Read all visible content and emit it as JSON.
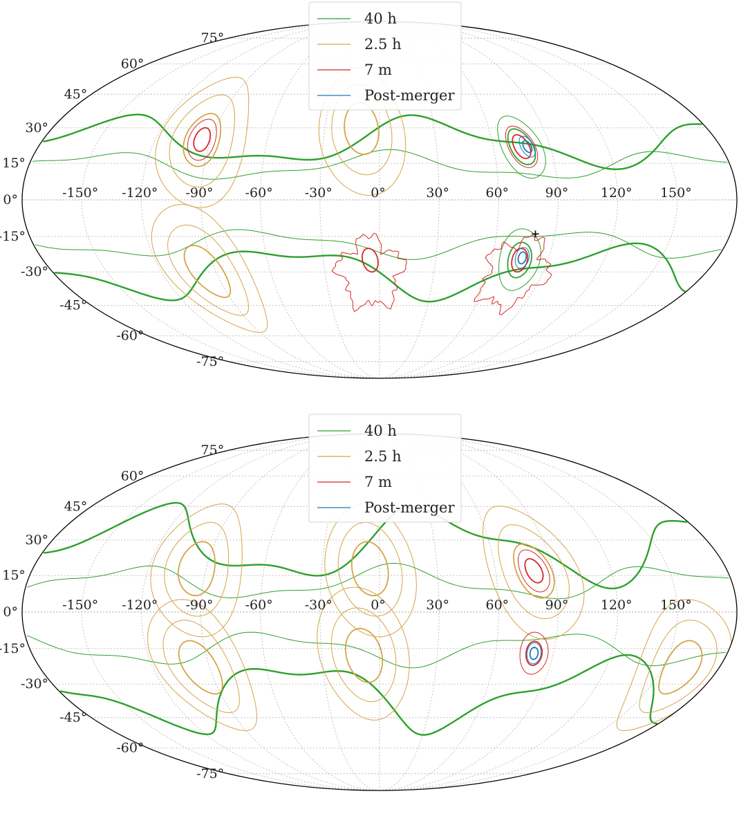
{
  "chart_data": [
    {
      "type": "contour",
      "projection": "mollweide",
      "grid": true,
      "legend_location": "upper-center",
      "longitude_ticks": [
        "-150°",
        "-120°",
        "-90°",
        "-60°",
        "-30°",
        "0°",
        "30°",
        "60°",
        "90°",
        "120°",
        "150°"
      ],
      "latitude_ticks_left": [
        "75°",
        "60°",
        "45°",
        "30°",
        "15°",
        "0°",
        "-15°",
        "-30°",
        "-45°",
        "-60°",
        "-75°"
      ],
      "series": [
        {
          "name": "40 h",
          "color": "#2ca02c"
        },
        {
          "name": "2.5 h",
          "color": "#d4a447"
        },
        {
          "name": "7 m",
          "color": "#d62728"
        },
        {
          "name": "Post-merger",
          "color": "#1f77b4"
        }
      ],
      "localization_regions": [
        {
          "series": "40 h",
          "lon": 75,
          "lat": 22
        },
        {
          "series": "40 h",
          "lon": 75,
          "lat": -25
        },
        {
          "series": "2.5 h",
          "lon": -95,
          "lat": 25
        },
        {
          "series": "2.5 h",
          "lon": -10,
          "lat": 30
        },
        {
          "series": "2.5 h",
          "lon": -95,
          "lat": -30
        },
        {
          "series": "7 m",
          "lon": -95,
          "lat": 25
        },
        {
          "series": "7 m",
          "lon": -5,
          "lat": -25
        },
        {
          "series": "7 m",
          "lon": 75,
          "lat": 22
        },
        {
          "series": "7 m",
          "lon": 75,
          "lat": -25
        },
        {
          "series": "Post-merger",
          "lon": 78,
          "lat": 22
        },
        {
          "series": "Post-merger",
          "lon": 76,
          "lat": -24
        }
      ],
      "true_source": {
        "lon": 80,
        "lat": -14
      }
    },
    {
      "type": "contour",
      "projection": "mollweide",
      "grid": true,
      "legend_location": "upper-center",
      "longitude_ticks": [
        "-150°",
        "-120°",
        "-90°",
        "-60°",
        "-30°",
        "0°",
        "30°",
        "60°",
        "90°",
        "120°",
        "150°"
      ],
      "latitude_ticks_left": [
        "75°",
        "60°",
        "45°",
        "30°",
        "15°",
        "0°",
        "-15°",
        "-30°",
        "-45°",
        "-60°",
        "-75°"
      ],
      "series": [
        {
          "name": "40 h",
          "color": "#2ca02c"
        },
        {
          "name": "2.5 h",
          "color": "#d4a447"
        },
        {
          "name": "7 m",
          "color": "#d62728"
        },
        {
          "name": "Post-merger",
          "color": "#1f77b4"
        }
      ],
      "localization_regions": [
        {
          "series": "2.5 h",
          "lon": -95,
          "lat": 18
        },
        {
          "series": "2.5 h",
          "lon": -5,
          "lat": 18
        },
        {
          "series": "2.5 h",
          "lon": 80,
          "lat": 17
        },
        {
          "series": "2.5 h",
          "lon": -95,
          "lat": -23
        },
        {
          "series": "2.5 h",
          "lon": -8,
          "lat": -18
        },
        {
          "series": "2.5 h",
          "lon": 160,
          "lat": -23
        },
        {
          "series": "7 m",
          "lon": 80,
          "lat": 17
        },
        {
          "series": "7 m",
          "lon": 80,
          "lat": -17
        },
        {
          "series": "Post-merger",
          "lon": 80,
          "lat": -17
        }
      ]
    }
  ]
}
